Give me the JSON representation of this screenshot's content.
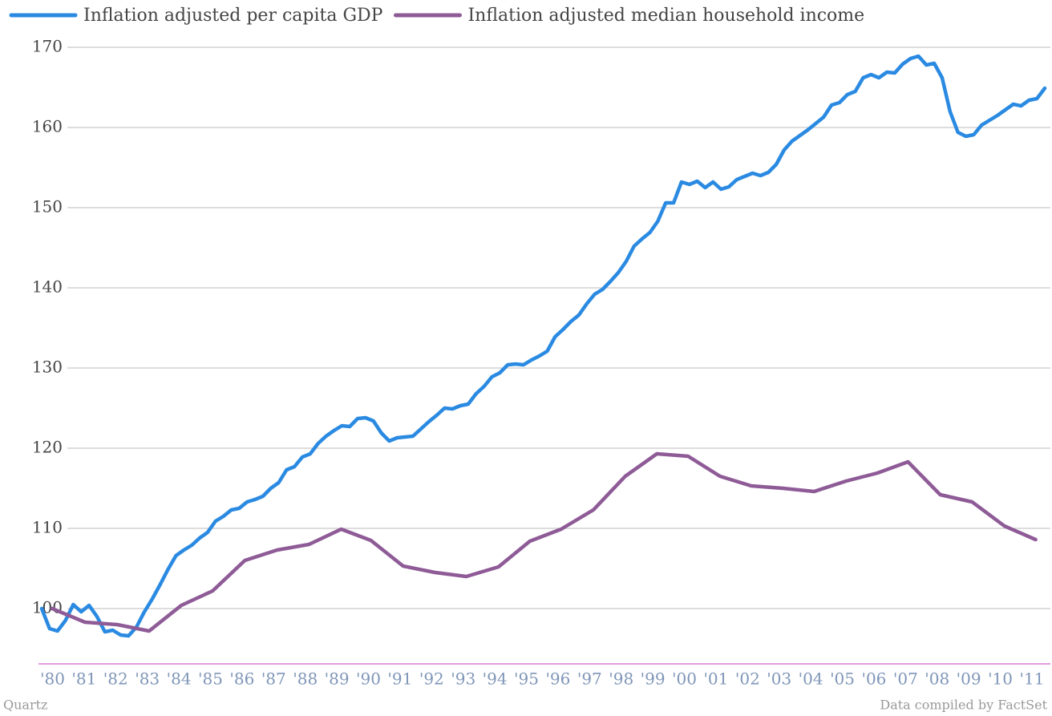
{
  "chart_data": {
    "type": "line",
    "series": [
      {
        "name": "Inflation adjusted per capita GDP",
        "color": "#2a8ae2",
        "x": [
          1980,
          1980.25,
          1980.5,
          1980.75,
          1981,
          1981.25,
          1981.5,
          1981.75,
          1982,
          1982.25,
          1982.5,
          1982.75,
          1983,
          1983.25,
          1983.5,
          1983.75,
          1984,
          1984.25,
          1984.5,
          1984.75,
          1985,
          1985.25,
          1985.5,
          1985.75,
          1986,
          1986.25,
          1986.5,
          1986.75,
          1987,
          1987.25,
          1987.5,
          1987.75,
          1988,
          1988.25,
          1988.5,
          1988.75,
          1989,
          1989.25,
          1989.5,
          1989.75,
          1990,
          1990.25,
          1990.5,
          1990.75,
          1991,
          1991.25,
          1991.5,
          1991.75,
          1992,
          1992.25,
          1992.5,
          1992.75,
          1993,
          1993.25,
          1993.5,
          1993.75,
          1994,
          1994.25,
          1994.5,
          1994.75,
          1995,
          1995.25,
          1995.5,
          1995.75,
          1996,
          1996.25,
          1996.5,
          1996.75,
          1997,
          1997.25,
          1997.5,
          1997.75,
          1998,
          1998.25,
          1998.5,
          1998.75,
          1999,
          1999.25,
          1999.5,
          1999.75,
          2000,
          2000.25,
          2000.5,
          2000.75,
          2001,
          2001.25,
          2001.5,
          2001.75,
          2002,
          2002.25,
          2002.5,
          2002.75,
          2003,
          2003.25,
          2003.5,
          2003.75,
          2004,
          2004.25,
          2004.5,
          2004.75,
          2005,
          2005.25,
          2005.5,
          2005.75,
          2006,
          2006.25,
          2006.5,
          2006.75,
          2007,
          2007.25,
          2007.5,
          2007.75,
          2008,
          2008.25,
          2008.5,
          2008.75,
          2009,
          2009.25,
          2009.5,
          2009.75,
          2010,
          2010.25,
          2010.5,
          2010.75,
          2011,
          2011.25,
          2011.5,
          2011.75
        ],
        "values": [
          100,
          97.5,
          97.2,
          98.5,
          100.5,
          99.6,
          100.4,
          99.0,
          97.1,
          97.3,
          96.7,
          96.6,
          97.7,
          99.6,
          101.2,
          103.0,
          104.9,
          106.6,
          107.3,
          107.9,
          108.8,
          109.5,
          110.9,
          111.5,
          112.3,
          112.5,
          113.3,
          113.6,
          114.0,
          115.0,
          115.7,
          117.3,
          117.7,
          118.9,
          119.3,
          120.6,
          121.5,
          122.2,
          122.8,
          122.7,
          123.7,
          123.8,
          123.4,
          121.9,
          120.9,
          121.3,
          121.4,
          121.5,
          122.4,
          123.3,
          124.1,
          125.0,
          124.9,
          125.3,
          125.5,
          126.8,
          127.7,
          128.9,
          129.4,
          130.4,
          130.5,
          130.4,
          131.0,
          131.5,
          132.1,
          133.9,
          134.8,
          135.8,
          136.6,
          138.0,
          139.2,
          139.8,
          140.8,
          141.9,
          143.3,
          145.2,
          146.1,
          146.9,
          148.3,
          150.6,
          150.6,
          153.2,
          152.9,
          153.3,
          152.5,
          153.2,
          152.3,
          152.6,
          153.5,
          153.9,
          154.3,
          154.0,
          154.4,
          155.4,
          157.2,
          158.3,
          159.0,
          159.7,
          160.5,
          161.3,
          162.8,
          163.1,
          164.1,
          164.5,
          166.2,
          166.6,
          166.2,
          166.9,
          166.8,
          167.9,
          168.6,
          168.9,
          167.8,
          168.0,
          166.2,
          162.0,
          159.4,
          158.9,
          159.1,
          160.3,
          160.9,
          161.5,
          162.2,
          162.9,
          162.7,
          163.4,
          163.6,
          164.9
        ]
      },
      {
        "name": "Inflation adjusted median household income",
        "color": "#8e5b97",
        "x": [
          1980.33,
          1981.37,
          1982.39,
          1983.4,
          1984.42,
          1985.41,
          1986.43,
          1987.45,
          1988.46,
          1989.48,
          1990.42,
          1991.44,
          1992.45,
          1993.44,
          1994.46,
          1995.45,
          1996.44,
          1997.46,
          1998.47,
          1999.47,
          2000.46,
          2001.47,
          2002.46,
          2003.46,
          2004.45,
          2005.46,
          2006.45,
          2007.42,
          2008.44,
          2009.45,
          2010.47,
          2011.46
        ],
        "values": [
          100,
          98.3,
          98.0,
          97.2,
          100.4,
          102.2,
          106.0,
          107.3,
          108.0,
          109.9,
          108.5,
          105.3,
          104.5,
          104.0,
          105.2,
          108.4,
          109.9,
          112.3,
          116.5,
          119.3,
          119.0,
          116.5,
          115.3,
          115.0,
          114.6,
          115.9,
          116.9,
          118.3,
          114.2,
          113.3,
          110.3,
          108.6
        ]
      }
    ],
    "xlim": [
      1980,
      2011.8
    ],
    "xticks": [
      {
        "value": 1980,
        "label": "'80"
      },
      {
        "value": 1981,
        "label": "'81"
      },
      {
        "value": 1982,
        "label": "'82"
      },
      {
        "value": 1983,
        "label": "'83"
      },
      {
        "value": 1984,
        "label": "'84"
      },
      {
        "value": 1985,
        "label": "'85"
      },
      {
        "value": 1986,
        "label": "'86"
      },
      {
        "value": 1987,
        "label": "'87"
      },
      {
        "value": 1988,
        "label": "'88"
      },
      {
        "value": 1989,
        "label": "'89"
      },
      {
        "value": 1990,
        "label": "'90"
      },
      {
        "value": 1991,
        "label": "'91"
      },
      {
        "value": 1992,
        "label": "'92"
      },
      {
        "value": 1993,
        "label": "'93"
      },
      {
        "value": 1994,
        "label": "'94"
      },
      {
        "value": 1995,
        "label": "'95"
      },
      {
        "value": 1996,
        "label": "'96"
      },
      {
        "value": 1997,
        "label": "'97"
      },
      {
        "value": 1998,
        "label": "'98"
      },
      {
        "value": 1999,
        "label": "'99"
      },
      {
        "value": 2000,
        "label": "'00"
      },
      {
        "value": 2001,
        "label": "'01"
      },
      {
        "value": 2002,
        "label": "'02"
      },
      {
        "value": 2003,
        "label": "'03"
      },
      {
        "value": 2004,
        "label": "'04"
      },
      {
        "value": 2005,
        "label": "'05"
      },
      {
        "value": 2006,
        "label": "'06"
      },
      {
        "value": 2007,
        "label": "'07"
      },
      {
        "value": 2008,
        "label": "'08"
      },
      {
        "value": 2009,
        "label": "'09"
      },
      {
        "value": 2010,
        "label": "'10"
      },
      {
        "value": 2011,
        "label": "'11"
      }
    ],
    "ylim": [
      93.1,
      170
    ],
    "yticks": [
      100,
      110,
      120,
      130,
      140,
      150,
      160,
      170
    ],
    "grid": true,
    "legend": "top-left",
    "source": "Quartz",
    "note": "Data compiled by FactSet"
  }
}
